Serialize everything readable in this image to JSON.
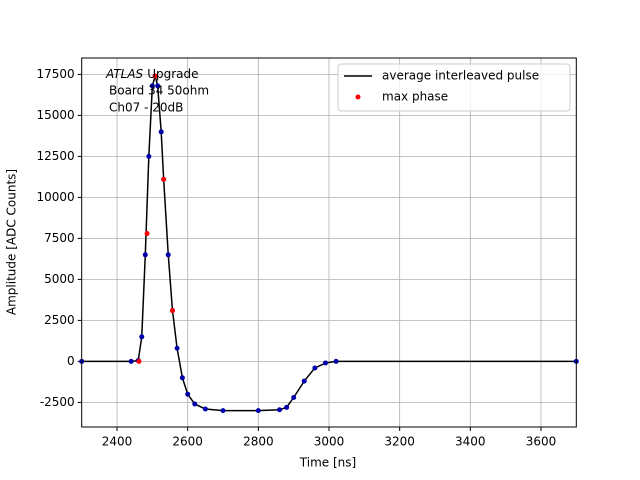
{
  "chart_data": {
    "type": "line",
    "xlabel": "Time [ns]",
    "ylabel": "Amplitude [ADC Counts]",
    "annotation_italic": "ATLAS",
    "annotation_lines": [
      "Upgrade",
      "Board 34 50ohm",
      "Ch07 - 20dB"
    ],
    "xlim": [
      2300,
      3700
    ],
    "xticks": [
      2400,
      2600,
      2800,
      3000,
      3200,
      3400,
      3600
    ],
    "ylim": [
      -4000,
      18500
    ],
    "yticks": [
      -2500,
      0,
      2500,
      5000,
      7500,
      10000,
      12500,
      15000,
      17500
    ],
    "grid": true,
    "legend": "upper right",
    "series": [
      {
        "name": "average interleaved pulse",
        "type": "line",
        "color": "#000000",
        "marker_color": "#0000aa",
        "x": [
          2300,
          2440,
          2460,
          2470,
          2480,
          2490,
          2500,
          2508,
          2515,
          2525,
          2532,
          2545,
          2557,
          2570,
          2585,
          2600,
          2620,
          2650,
          2700,
          2800,
          2860,
          2880,
          2900,
          2930,
          2960,
          2990,
          3020,
          3700
        ],
        "values": [
          0,
          0,
          50,
          1500,
          6500,
          12500,
          16800,
          17400,
          16800,
          14000,
          11100,
          6500,
          3100,
          800,
          -1000,
          -2000,
          -2600,
          -2900,
          -3000,
          -3000,
          -2950,
          -2800,
          -2200,
          -1200,
          -400,
          -100,
          0,
          0
        ]
      },
      {
        "name": "max phase",
        "type": "scatter",
        "color": "#ff0000",
        "x": [
          2462,
          2485,
          2508,
          2532,
          2557
        ],
        "values": [
          0,
          7800,
          17400,
          11100,
          3100
        ]
      }
    ]
  }
}
